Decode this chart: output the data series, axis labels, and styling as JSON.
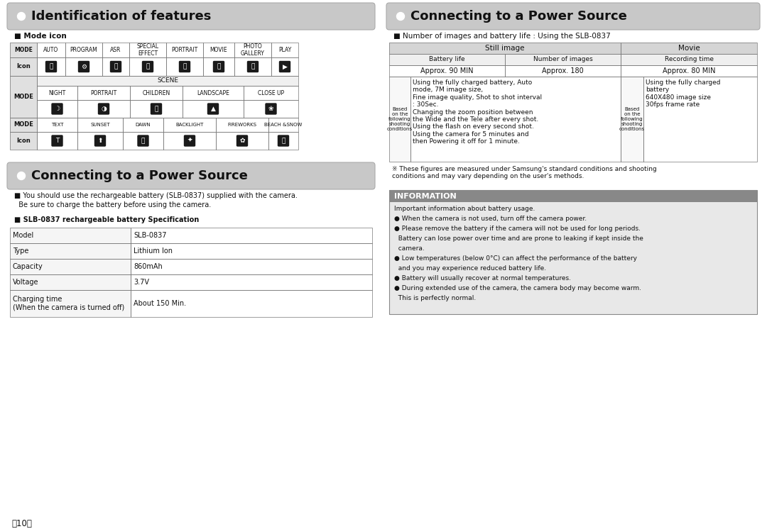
{
  "page_bg": "#ffffff",
  "left_section1_title": "Identification of features",
  "left_section2_title": "Connecting to a Power Source",
  "right_section1_title": "Connecting to a Power Source",
  "mode_icon_label": "■ Mode icon",
  "battery_note": "■ Number of images and battery life : Using the SLB-0837",
  "still_image_header": "Still image",
  "movie_header": "Movie",
  "battery_life_header": "Battery life",
  "num_images_header": "Number of images",
  "recording_time_header": "Recording time",
  "approx_90": "Approx. 90 MIN",
  "approx_180": "Approx. 180",
  "approx_80": "Approx. 80 MIN",
  "based_label_still": "Based\non the\nfollowing\nshooting\nconditions",
  "based_label_movie": "Based\non the\nfollowing\nshooting\nconditions",
  "still_conditions": "Using the fully charged battery, Auto\nmode, 7M image size,\nFine image quality, Shot to shot interval\n: 30Sec.\nChanging the zoom position between\nthe Wide and the Tele after every shot.\nUsing the flash on every second shot.\nUsing the camera for 5 minutes and\nthen Powering it off for 1 minute.",
  "movie_conditions": "Using the fully charged\nbattery\n640X480 image size\n30fps frame rate",
  "footnote": "※ These figures are measured under Samsung's standard conditions and shooting\nconditions and may vary depending on the user's methods.",
  "info_header": "INFORMATION",
  "info_lines": [
    "Important information about battery usage.",
    "● When the camera is not used, turn off the camera power.",
    "● Please remove the battery if the camera will not be used for long periods.",
    "  Battery can lose power over time and are prone to leaking if kept inside the",
    "  camera.",
    "● Low temperatures (below 0°C) can affect the performance of the battery",
    "  and you may experience reduced battery life.",
    "● Battery will usually recover at normal temperatures.",
    "● During extended use of the camera, the camera body may become warm.",
    "  This is perfectly normal."
  ],
  "left_power_note1a": "■ You should use the rechargeable battery (SLB-0837) supplied with the camera.",
  "left_power_note1b": "  Be sure to charge the battery before using the camera.",
  "left_power_note2": "■ SLB-0837 rechargeable battery Specification",
  "battery_spec": [
    [
      "Model",
      "SLB-0837"
    ],
    [
      "Type",
      "Lithium Ion"
    ],
    [
      "Capacity",
      "860mAh"
    ],
    [
      "Voltage",
      "3.7V"
    ],
    [
      "Charging time\n(When the camera is turned off)",
      "About 150 Min."
    ]
  ],
  "page_num": "〈10〉",
  "mode_cols": [
    38,
    40,
    52,
    38,
    52,
    52,
    44,
    52,
    38
  ],
  "mode_labels": [
    "MODE",
    "AUTO",
    "PROGRAM",
    "ASR",
    "SPECIAL\nEFFECT",
    "PORTRAIT",
    "MOVIE",
    "PHOTO\nGALLERY",
    "PLAY"
  ],
  "scene_cols": [
    48,
    62,
    62,
    72,
    62
  ],
  "scene_labels": [
    "NIGHT",
    "PORTRAIT",
    "CHILDREN",
    "LANDSCAPE",
    "CLOSE UP"
  ],
  "bot_cols": [
    48,
    54,
    48,
    62,
    62,
    32
  ],
  "bot_labels": [
    "TEXT",
    "SUNSET",
    "DAWN",
    "BACKLIGHT",
    "FIREWORKS",
    "BEACH &SNOW"
  ]
}
